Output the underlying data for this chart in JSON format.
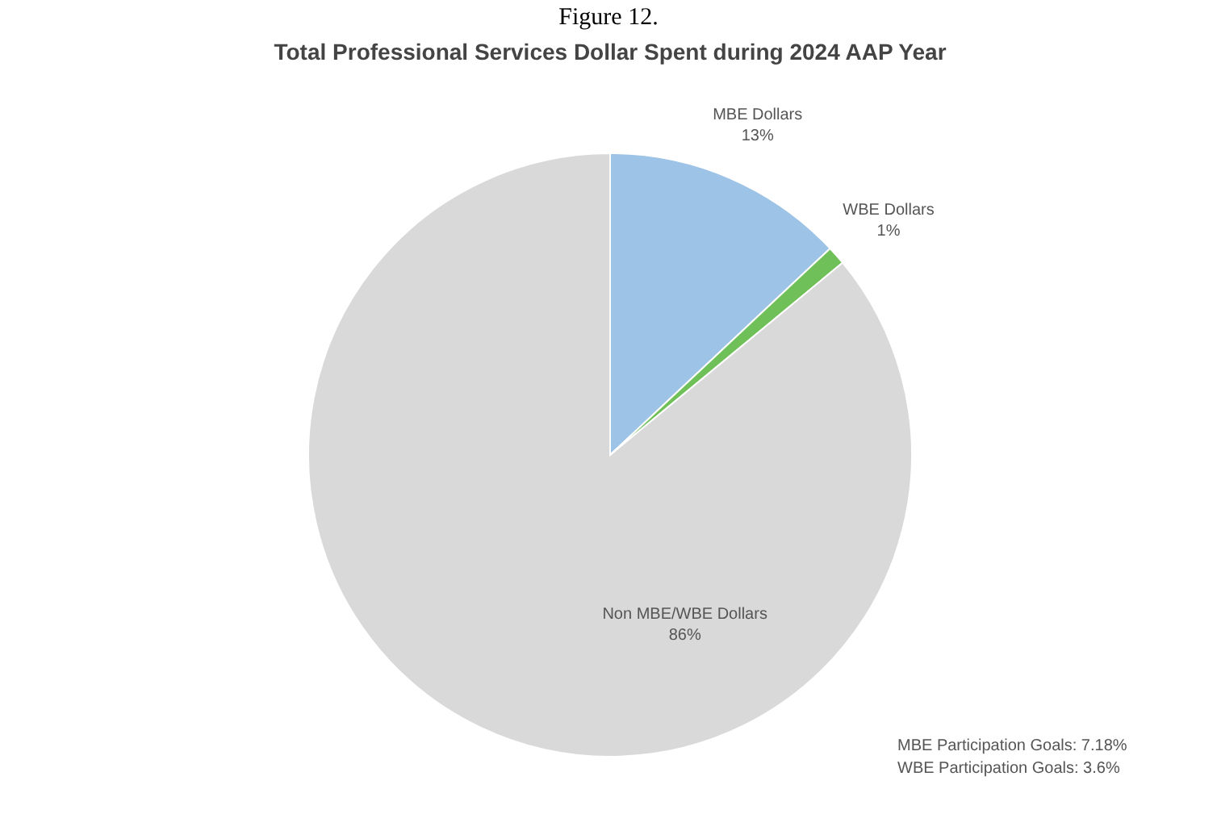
{
  "chart_data": {
    "type": "pie",
    "title": "Total Professional Services Dollar Spent during 2024 AAP Year",
    "categories": [
      "MBE Dollars",
      "WBE Dollars",
      "Non MBE/WBE Dollars"
    ],
    "values": [
      13,
      1,
      86
    ],
    "value_labels": [
      "13%",
      "1%",
      "86%"
    ],
    "colors": [
      "#9dc3e6",
      "#70c05a",
      "#d9d9d9"
    ],
    "annotations": [
      "Figure 12.",
      "MBE Participation Goals: 7.18%",
      "WBE Participation Goals: 3.6%"
    ]
  }
}
